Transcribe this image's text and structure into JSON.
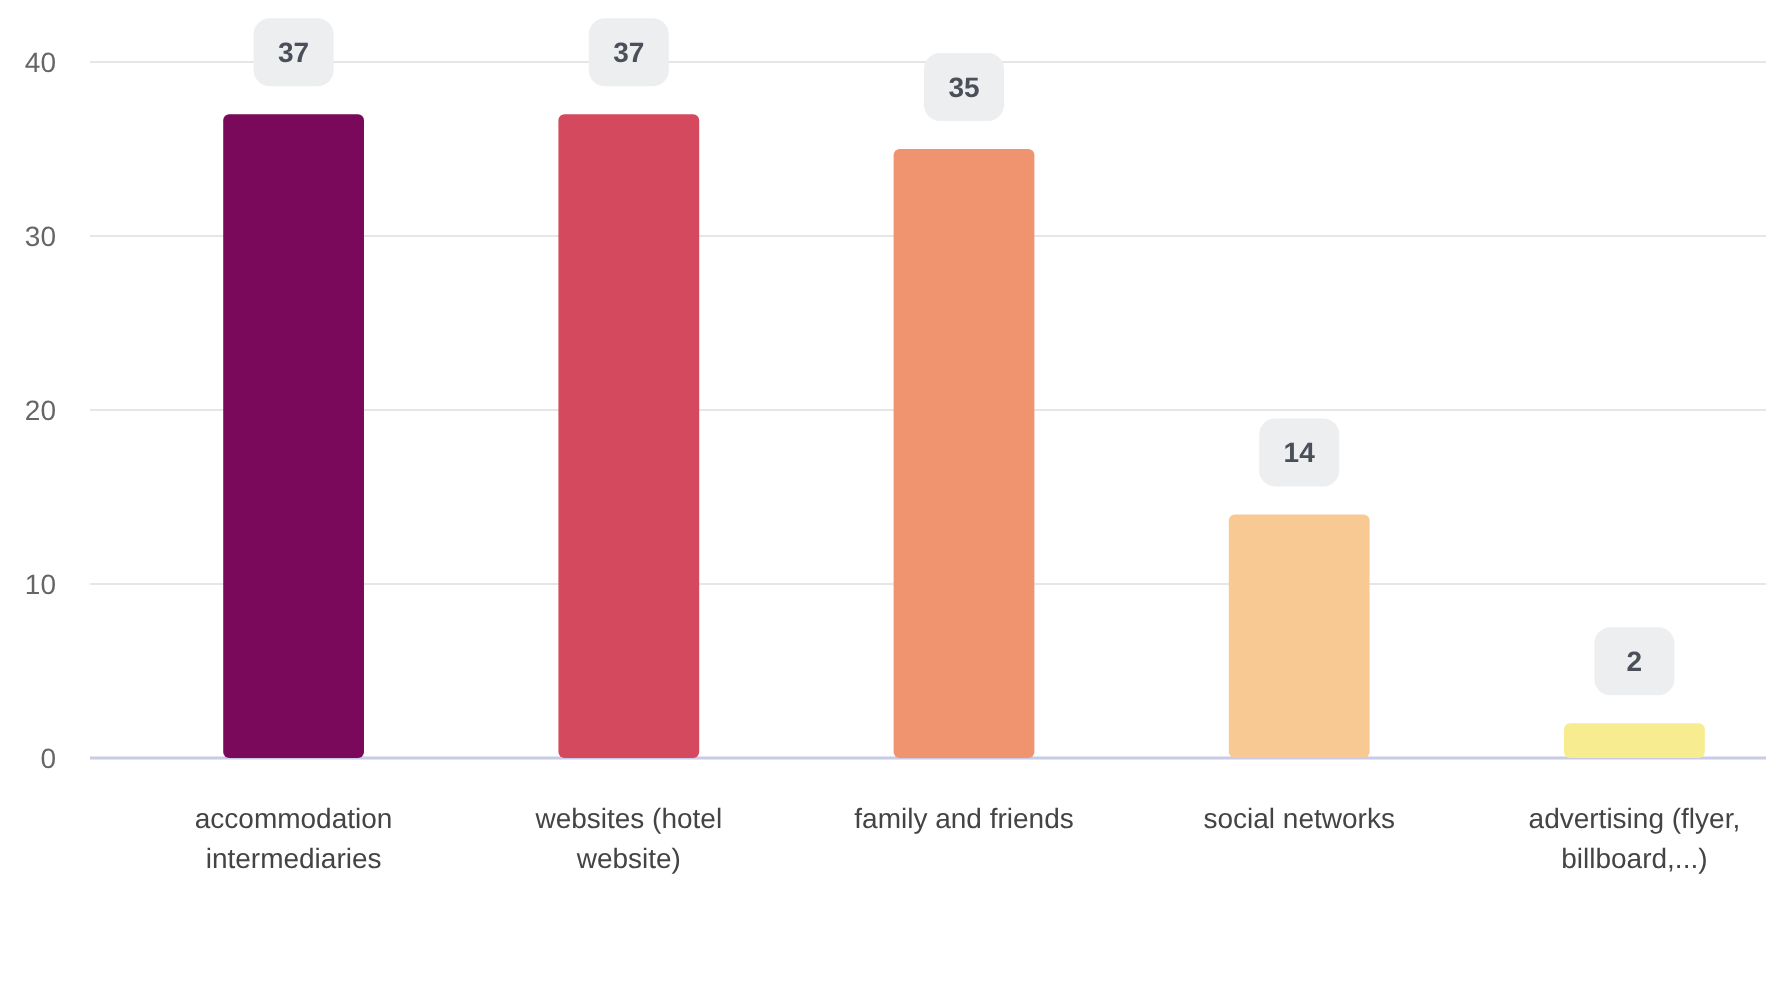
{
  "chart_data": {
    "type": "bar",
    "categories": [
      "accommodation intermediaries",
      "websites (hotel website)",
      "family and friends",
      "social networks",
      "advertising (flyer, billboard,...)"
    ],
    "values": [
      37,
      37,
      35,
      14,
      2
    ],
    "colors": [
      "#7a095c",
      "#d4495e",
      "#f09470",
      "#f8c993",
      "#f7ec8f"
    ],
    "ylim": [
      0,
      40
    ],
    "yticks": [
      0,
      10,
      20,
      30,
      40
    ],
    "grid": "y",
    "data_labels": true
  }
}
